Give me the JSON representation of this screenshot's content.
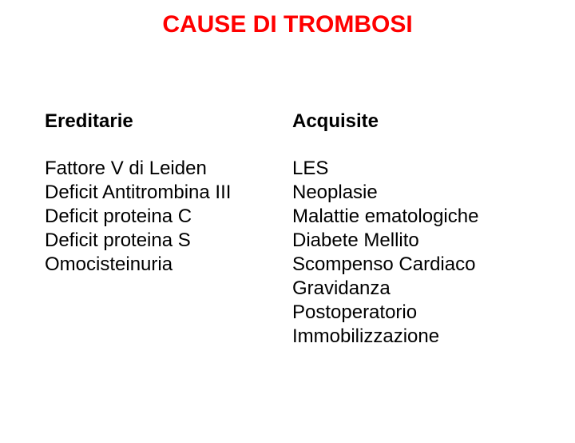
{
  "title": "CAUSE DI TROMBOSI",
  "left": {
    "heading": "Ereditarie",
    "items": [
      "Fattore  V di Leiden",
      "Deficit Antitrombina III",
      "Deficit proteina C",
      "Deficit proteina S",
      "Omocisteinuria"
    ]
  },
  "right": {
    "heading": "Acquisite",
    "items": [
      "LES",
      "Neoplasie",
      "Malattie ematologiche",
      "Diabete Mellito",
      "Scompenso Cardiaco",
      "Gravidanza",
      "Postoperatorio",
      "Immobilizzazione"
    ]
  },
  "colors": {
    "title": "#ff0000",
    "text": "#000000",
    "background": "#ffffff"
  },
  "typography": {
    "title_fontsize": 30,
    "heading_fontsize": 24,
    "item_fontsize": 24
  }
}
